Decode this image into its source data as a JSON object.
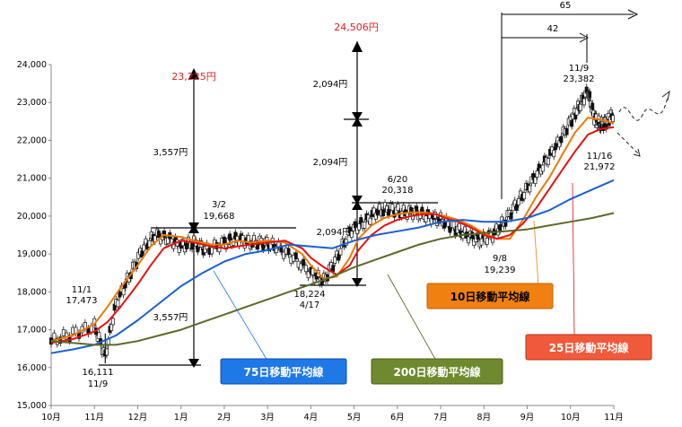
{
  "chart_data": {
    "type": "line",
    "title": "",
    "xlabel": "",
    "ylabel": "",
    "ylim": [
      15000,
      24000
    ],
    "y_ticks": [
      "15,000",
      "16,000",
      "17,000",
      "18,000",
      "19,000",
      "20,000",
      "21,000",
      "22,000",
      "23,000",
      "24,000"
    ],
    "x_ticks": [
      "10月",
      "11月",
      "12月",
      "1月",
      "2月",
      "3月",
      "4月",
      "5月",
      "6月",
      "7月",
      "8月",
      "9月",
      "10月",
      "11月"
    ],
    "grid": false,
    "series": [
      {
        "name": "10日移動平均線",
        "color": "#f07800",
        "values": [
          [
            0,
            16700
          ],
          [
            0.5,
            16850
          ],
          [
            1.0,
            17150
          ],
          [
            1.3,
            17600
          ],
          [
            1.6,
            18100
          ],
          [
            2.0,
            18700
          ],
          [
            2.3,
            19200
          ],
          [
            2.6,
            19500
          ],
          [
            3.0,
            19450
          ],
          [
            3.3,
            19350
          ],
          [
            3.7,
            19250
          ],
          [
            4.0,
            19250
          ],
          [
            4.3,
            19350
          ],
          [
            4.6,
            19300
          ],
          [
            5.0,
            19350
          ],
          [
            5.4,
            19300
          ],
          [
            5.8,
            19000
          ],
          [
            6.0,
            18700
          ],
          [
            6.3,
            18350
          ],
          [
            6.6,
            18400
          ],
          [
            6.9,
            18900
          ],
          [
            7.1,
            19400
          ],
          [
            7.4,
            19750
          ],
          [
            7.7,
            19950
          ],
          [
            8.0,
            20050
          ],
          [
            8.3,
            20100
          ],
          [
            8.6,
            20100
          ],
          [
            8.9,
            20050
          ],
          [
            9.1,
            20000
          ],
          [
            9.4,
            19900
          ],
          [
            9.7,
            19750
          ],
          [
            10.0,
            19550
          ],
          [
            10.3,
            19400
          ],
          [
            10.6,
            19400
          ],
          [
            10.9,
            19900
          ],
          [
            11.2,
            20500
          ],
          [
            11.5,
            21000
          ],
          [
            11.8,
            21600
          ],
          [
            12.1,
            22200
          ],
          [
            12.4,
            22600
          ],
          [
            12.7,
            22550
          ],
          [
            13.0,
            22450
          ]
        ]
      },
      {
        "name": "25日移動平均線",
        "color": "#e81010",
        "values": [
          [
            0,
            16650
          ],
          [
            0.5,
            16750
          ],
          [
            1.0,
            16950
          ],
          [
            1.3,
            17200
          ],
          [
            1.6,
            17600
          ],
          [
            2.0,
            18200
          ],
          [
            2.3,
            18700
          ],
          [
            2.6,
            19150
          ],
          [
            3.0,
            19350
          ],
          [
            3.3,
            19300
          ],
          [
            3.7,
            19200
          ],
          [
            4.0,
            19150
          ],
          [
            4.3,
            19200
          ],
          [
            4.6,
            19250
          ],
          [
            5.0,
            19300
          ],
          [
            5.4,
            19350
          ],
          [
            5.8,
            19150
          ],
          [
            6.0,
            18900
          ],
          [
            6.3,
            18650
          ],
          [
            6.6,
            18450
          ],
          [
            6.9,
            18700
          ],
          [
            7.1,
            19100
          ],
          [
            7.4,
            19500
          ],
          [
            7.7,
            19750
          ],
          [
            8.0,
            19900
          ],
          [
            8.3,
            20000
          ],
          [
            8.6,
            20050
          ],
          [
            8.9,
            20050
          ],
          [
            9.1,
            19950
          ],
          [
            9.4,
            19850
          ],
          [
            9.7,
            19700
          ],
          [
            10.0,
            19500
          ],
          [
            10.3,
            19400
          ],
          [
            10.6,
            19500
          ],
          [
            10.9,
            19800
          ],
          [
            11.2,
            20200
          ],
          [
            11.5,
            20700
          ],
          [
            11.8,
            21200
          ],
          [
            12.1,
            21700
          ],
          [
            12.4,
            22150
          ],
          [
            12.7,
            22300
          ],
          [
            13.0,
            22350
          ]
        ]
      },
      {
        "name": "75日移動平均線",
        "color": "#1a5fd0",
        "values": [
          [
            0,
            16380
          ],
          [
            0.5,
            16480
          ],
          [
            1.0,
            16600
          ],
          [
            1.5,
            16850
          ],
          [
            2.0,
            17250
          ],
          [
            2.5,
            17700
          ],
          [
            3.0,
            18150
          ],
          [
            3.5,
            18500
          ],
          [
            4.0,
            18800
          ],
          [
            4.5,
            19000
          ],
          [
            5.0,
            19100
          ],
          [
            5.5,
            19250
          ],
          [
            6.0,
            19200
          ],
          [
            6.5,
            19150
          ],
          [
            7.0,
            19350
          ],
          [
            7.5,
            19500
          ],
          [
            8.0,
            19600
          ],
          [
            8.5,
            19700
          ],
          [
            9.0,
            19850
          ],
          [
            9.5,
            19900
          ],
          [
            10.0,
            19850
          ],
          [
            10.5,
            19850
          ],
          [
            11.0,
            19950
          ],
          [
            11.5,
            20150
          ],
          [
            12.0,
            20450
          ],
          [
            12.5,
            20700
          ],
          [
            13.0,
            20950
          ]
        ]
      },
      {
        "name": "200日移動平均線",
        "color": "#5a6a28",
        "values": [
          [
            0,
            16700
          ],
          [
            0.5,
            16650
          ],
          [
            1.0,
            16600
          ],
          [
            1.5,
            16600
          ],
          [
            2.0,
            16700
          ],
          [
            2.5,
            16850
          ],
          [
            3.0,
            17000
          ],
          [
            3.5,
            17200
          ],
          [
            4.0,
            17400
          ],
          [
            4.5,
            17600
          ],
          [
            5.0,
            17800
          ],
          [
            5.5,
            18000
          ],
          [
            6.0,
            18200
          ],
          [
            6.5,
            18400
          ],
          [
            7.0,
            18650
          ],
          [
            7.5,
            18850
          ],
          [
            8.0,
            19050
          ],
          [
            8.5,
            19250
          ],
          [
            9.0,
            19400
          ],
          [
            9.5,
            19500
          ],
          [
            10.0,
            19550
          ],
          [
            10.5,
            19600
          ],
          [
            11.0,
            19650
          ],
          [
            11.5,
            19750
          ],
          [
            12.0,
            19850
          ],
          [
            12.5,
            19950
          ],
          [
            13.0,
            20080
          ]
        ]
      }
    ],
    "candles": [
      [
        0,
        16700
      ],
      [
        0.5,
        16900
      ],
      [
        1.0,
        17100
      ],
      [
        1.25,
        16300
      ],
      [
        1.5,
        17700
      ],
      [
        1.8,
        18400
      ],
      [
        2.1,
        19100
      ],
      [
        2.4,
        19500
      ],
      [
        2.7,
        19400
      ],
      [
        3.0,
        19200
      ],
      [
        3.3,
        19300
      ],
      [
        3.6,
        19100
      ],
      [
        4.0,
        19300
      ],
      [
        4.3,
        19400
      ],
      [
        4.6,
        19300
      ],
      [
        4.9,
        19300
      ],
      [
        5.2,
        19200
      ],
      [
        5.6,
        18900
      ],
      [
        6.0,
        18500
      ],
      [
        6.3,
        18300
      ],
      [
        6.6,
        18900
      ],
      [
        6.9,
        19600
      ],
      [
        7.2,
        19800
      ],
      [
        7.5,
        20100
      ],
      [
        7.8,
        20200
      ],
      [
        8.1,
        20100
      ],
      [
        8.4,
        20100
      ],
      [
        8.7,
        20000
      ],
      [
        9.0,
        19900
      ],
      [
        9.3,
        19700
      ],
      [
        9.6,
        19500
      ],
      [
        9.9,
        19350
      ],
      [
        10.2,
        19500
      ],
      [
        10.5,
        19900
      ],
      [
        10.8,
        20400
      ],
      [
        11.1,
        20900
      ],
      [
        11.4,
        21400
      ],
      [
        11.7,
        21900
      ],
      [
        12.0,
        22500
      ],
      [
        12.2,
        22900
      ],
      [
        12.4,
        23300
      ],
      [
        12.55,
        22600
      ],
      [
        12.7,
        22400
      ],
      [
        12.85,
        22500
      ],
      [
        13.0,
        22700
      ]
    ],
    "annotations": [
      {
        "label_top": "11/1",
        "label_bottom": "17,473"
      },
      {
        "label_top": "16,111",
        "label_bottom": "11/9"
      },
      {
        "label_top": "3/2",
        "label_bottom": "19,668"
      },
      {
        "label_top": "18,224",
        "label_bottom": "4/17"
      },
      {
        "label_top": "6/20",
        "label_bottom": "20,318"
      },
      {
        "label_top": "9/8",
        "label_bottom": "19,239"
      },
      {
        "label_top": "11/9",
        "label_bottom": "23,382"
      },
      {
        "label_top": "11/16",
        "label_bottom": "21,972"
      }
    ],
    "range_labels": {
      "a1": "3,557円",
      "a2": "3,557円",
      "a_target": "23,225円",
      "b1": "2,094円",
      "b2": "2,094円",
      "b3": "2,094円",
      "b_target": "24,506円",
      "days_65": "65",
      "days_42": "42"
    },
    "legend": {
      "ma10": "10日移動平均線",
      "ma25": "25日移動平均線",
      "ma75": "75日移動平均線",
      "ma200": "200日移動平均線"
    },
    "colors": {
      "ma10_box": "#f08010",
      "ma25_box": "#f05a3a",
      "ma75_box": "#1e78e6",
      "ma200_box": "#6f8a2e",
      "target_red": "#e02020"
    }
  }
}
